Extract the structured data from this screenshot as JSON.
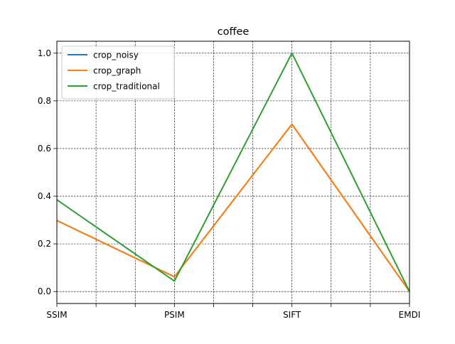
{
  "chart_data": {
    "type": "line",
    "title": "coffee",
    "xlabel": "",
    "ylabel": "",
    "categories": [
      "SSIM",
      "PSIM",
      "SIFT",
      "EMDI"
    ],
    "x_minor_ticks": 3,
    "ylim": [
      -0.05,
      1.05
    ],
    "yticks": [
      0.0,
      0.2,
      0.4,
      0.6,
      0.8,
      1.0
    ],
    "ytick_labels": [
      "0.0",
      "0.2",
      "0.4",
      "0.6",
      "0.8",
      "1.0"
    ],
    "grid": true,
    "legend_position": "top-left",
    "series": [
      {
        "name": "crop_noisy",
        "color": "#1f77b4",
        "values": [
          0.298,
          0.062,
          0.702,
          0.0
        ]
      },
      {
        "name": "crop_graph",
        "color": "#ff7f0e",
        "values": [
          0.298,
          0.062,
          0.702,
          0.0
        ]
      },
      {
        "name": "crop_traditional",
        "color": "#2ca02c",
        "values": [
          0.385,
          0.044,
          1.0,
          0.0
        ]
      }
    ]
  }
}
